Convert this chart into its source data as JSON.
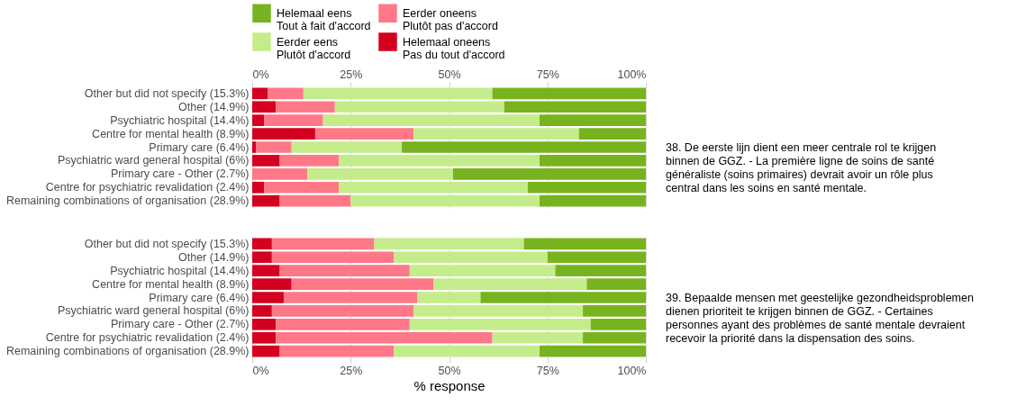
{
  "chart_data": [
    {
      "type": "bar",
      "stacked": true,
      "orientation": "horizontal",
      "annotations": [
        "38. De eerste lijn dient een meer centrale rol te krijgen binnen de GGZ. - La première ligne de soins de santé généraliste (soins primaires) devrait avoir un rôle plus central dans les soins en santé mentale."
      ],
      "categories": [
        "Other but did not specify (15.3%)",
        "Other (14.9%)",
        "Psychiatric hospital (14.4%)",
        "Centre for mental health (8.9%)",
        "Primary care (6.4%)",
        "Psychiatric ward general hospital (6%)",
        "Primary care - Other (2.7%)",
        "Centre for psychiatric revalidation (2.4%)",
        "Remaining combinations of organisation (28.9%)"
      ],
      "x2lim": [
        0,
        100
      ],
      "x2ticks": [
        {
          "value": 0,
          "label": "0%"
        },
        {
          "value": 25,
          "label": "25%"
        },
        {
          "value": 50,
          "label": "50%"
        },
        {
          "value": 75,
          "label": "75%"
        },
        {
          "value": 100,
          "label": "100%"
        }
      ],
      "grid": true,
      "legend": "top",
      "series": [
        {
          "name": "Helemaal oneens\nPas du tout d'accord",
          "color": "#d3001f",
          "axis": "x2",
          "values": [
            4,
            6,
            3,
            16,
            1,
            7,
            0,
            3,
            7
          ]
        },
        {
          "name": "Eerder oneens\nPlutôt pas d'accord",
          "color": "#ff7888",
          "axis": "x2",
          "values": [
            9,
            15,
            15,
            25,
            9,
            15,
            14,
            19,
            18
          ]
        },
        {
          "name": "Eerder eens\nPlutôt d'accord",
          "color": "#c5ec8a",
          "axis": "x2",
          "values": [
            48,
            43,
            55,
            42,
            28,
            51,
            37,
            48,
            48
          ]
        },
        {
          "name": "Helemaal eens\nTout à fait d'accord",
          "color": "#77b31e",
          "axis": "x2",
          "values": [
            39,
            36,
            27,
            17,
            62,
            27,
            49,
            30,
            27
          ]
        }
      ]
    },
    {
      "type": "bar",
      "stacked": true,
      "orientation": "horizontal",
      "annotations": [
        "39. Bepaalde mensen met geestelijke gezondheidsproblemen dienen prioriteit te krijgen binnen de GGZ. - Certaines personnes ayant des problèmes de santé mentale devraient recevoir la priorité dans la dispensation des soins."
      ],
      "categories": [
        "Other but did not specify (15.3%)",
        "Other (14.9%)",
        "Psychiatric hospital (14.4%)",
        "Centre for mental health (8.9%)",
        "Primary care (6.4%)",
        "Psychiatric ward general hospital (6%)",
        "Primary care - Other (2.7%)",
        "Centre for psychiatric revalidation (2.4%)",
        "Remaining combinations of organisation (28.9%)"
      ],
      "xlabel": "% response",
      "xlim": [
        0,
        100
      ],
      "xticks": [
        {
          "value": 0,
          "label": "0%"
        },
        {
          "value": 25,
          "label": "25%"
        },
        {
          "value": 50,
          "label": "50%"
        },
        {
          "value": 75,
          "label": "75%"
        },
        {
          "value": 100,
          "label": "100%"
        }
      ],
      "grid": true,
      "legend": "top",
      "series": [
        {
          "name": "Helemaal oneens\nPas du tout d'accord",
          "color": "#d3001f",
          "values": [
            5,
            5,
            7,
            10,
            8,
            5,
            6,
            6,
            7
          ]
        },
        {
          "name": "Eerder oneens\nPlutôt pas d'accord",
          "color": "#ff7888",
          "values": [
            26,
            31,
            33,
            36,
            34,
            36,
            34,
            55,
            29
          ]
        },
        {
          "name": "Eerder eens\nPlutôt d'accord",
          "color": "#c5ec8a",
          "values": [
            38,
            39,
            37,
            39,
            16,
            43,
            46,
            23,
            37
          ]
        },
        {
          "name": "Helemaal eens\nTout à fait d'accord",
          "color": "#77b31e",
          "values": [
            31,
            25,
            23,
            15,
            42,
            16,
            14,
            16,
            27
          ]
        }
      ]
    }
  ]
}
